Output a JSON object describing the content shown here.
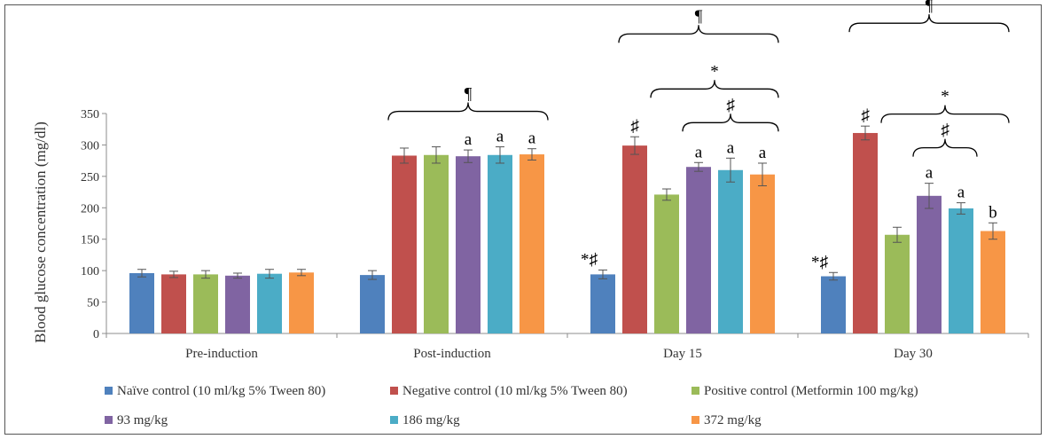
{
  "chart_data": {
    "type": "bar",
    "ylabel": "Blood glucose concentration (mg/dl)",
    "xlabel": "",
    "ylim": [
      0,
      350
    ],
    "yticks": [
      0,
      50,
      100,
      150,
      200,
      250,
      300,
      350
    ],
    "grid": false,
    "legend_position": "bottom",
    "categories": [
      "Pre-induction",
      "Post-induction",
      "Day 15",
      "Day 30"
    ],
    "series": [
      {
        "name": "Naïve control (10 ml/kg 5% Tween 80)",
        "color": "#4F81BD",
        "values": [
          96,
          93,
          94,
          91
        ],
        "errors": [
          6,
          7,
          7,
          6
        ]
      },
      {
        "name": "Negative control (10 ml/kg 5% Tween 80)",
        "color": "#C0504D",
        "values": [
          94,
          283,
          299,
          319
        ],
        "errors": [
          5,
          12,
          14,
          11
        ]
      },
      {
        "name": "Positive control (Metformin 100 mg/kg)",
        "color": "#9BBB59",
        "values": [
          94,
          284,
          221,
          157
        ],
        "errors": [
          6,
          13,
          9,
          12
        ]
      },
      {
        "name": "93 mg/kg",
        "color": "#8064A2",
        "values": [
          92,
          282,
          265,
          219
        ],
        "errors": [
          4,
          10,
          7,
          20
        ]
      },
      {
        "name": "186 mg/kg",
        "color": "#4BACC6",
        "values": [
          95,
          284,
          260,
          199
        ],
        "errors": [
          7,
          13,
          19,
          9
        ]
      },
      {
        "name": "372 mg/kg",
        "color": "#F79646",
        "values": [
          97,
          285,
          253,
          163
        ],
        "errors": [
          5,
          9,
          18,
          13
        ]
      }
    ],
    "bar_labels": [
      {
        "category": 0,
        "series": 0,
        "text": ""
      },
      {
        "category": 1,
        "series": 3,
        "text": "a"
      },
      {
        "category": 1,
        "series": 4,
        "text": "a"
      },
      {
        "category": 1,
        "series": 5,
        "text": "a"
      },
      {
        "category": 2,
        "series": 0,
        "text": "*♯"
      },
      {
        "category": 2,
        "series": 1,
        "text": "♯"
      },
      {
        "category": 2,
        "series": 3,
        "text": "a"
      },
      {
        "category": 2,
        "series": 4,
        "text": "a"
      },
      {
        "category": 2,
        "series": 5,
        "text": "a"
      },
      {
        "category": 3,
        "series": 0,
        "text": "*♯"
      },
      {
        "category": 3,
        "series": 1,
        "text": "♯"
      },
      {
        "category": 3,
        "series": 3,
        "text": "a"
      },
      {
        "category": 3,
        "series": 4,
        "text": "a"
      },
      {
        "category": 3,
        "series": 5,
        "text": "b"
      }
    ],
    "brackets": [
      {
        "category": 1,
        "from_series": 1,
        "to_series": 5,
        "text": "¶",
        "level": 0
      },
      {
        "category": 2,
        "from_series": 1,
        "to_series": 5,
        "text": "¶",
        "level": 2
      },
      {
        "category": 2,
        "from_series": 2,
        "to_series": 5,
        "text": "*",
        "level": 1
      },
      {
        "category": 2,
        "from_series": 3,
        "to_series": 5,
        "text": "♯",
        "level": 0
      },
      {
        "category": 3,
        "from_series": 1,
        "to_series": 5,
        "text": "¶",
        "level": 2
      },
      {
        "category": 3,
        "from_series": 2,
        "to_series": 5,
        "text": "*",
        "level": 1
      },
      {
        "category": 3,
        "from_series": 3,
        "to_series": 4,
        "text": "♯",
        "level": 0
      }
    ]
  }
}
